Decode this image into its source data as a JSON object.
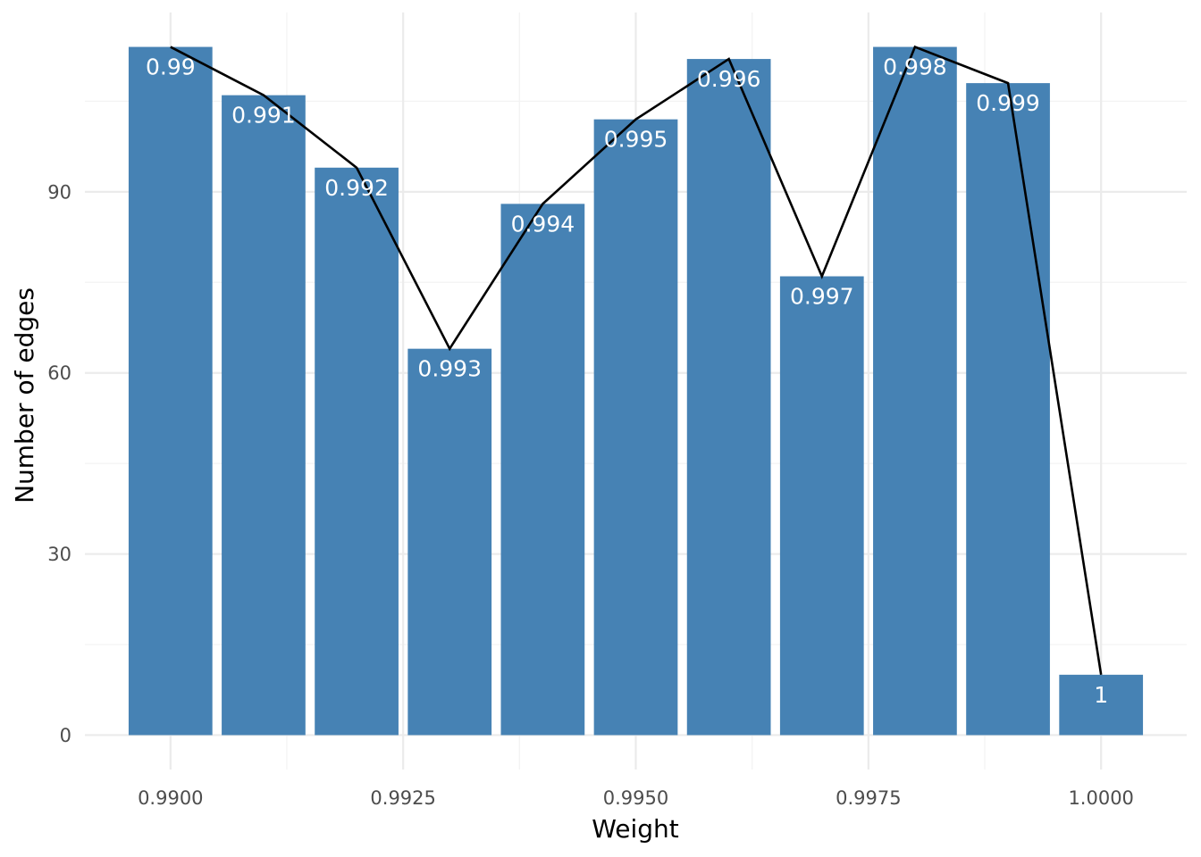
{
  "chart_data": {
    "type": "bar",
    "x": [
      0.99,
      0.991,
      0.992,
      0.993,
      0.994,
      0.995,
      0.996,
      0.997,
      0.998,
      0.999,
      1.0
    ],
    "values": [
      114,
      106,
      94,
      64,
      88,
      102,
      112,
      76,
      114,
      108,
      10
    ],
    "bar_labels": [
      "0.99",
      "0.991",
      "0.992",
      "0.993",
      "0.994",
      "0.995",
      "0.996",
      "0.997",
      "0.998",
      "0.999",
      "1"
    ],
    "line_overlay": {
      "color": "#000000",
      "connects": "bar tops"
    },
    "bar_color": "#4682b4",
    "xlabel": "Weight",
    "ylabel": "Number of edges",
    "xlim": [
      0.98908,
      1.00092
    ],
    "ylim": [
      -5.7,
      119.7
    ],
    "x_ticks": [
      0.99,
      0.9925,
      0.995,
      0.9975,
      1.0
    ],
    "x_tick_labels": [
      "0.9900",
      "0.9925",
      "0.9950",
      "0.9975",
      "1.0000"
    ],
    "y_ticks": [
      0,
      30,
      60,
      90
    ],
    "y_tick_labels": [
      "0",
      "30",
      "60",
      "90"
    ],
    "grid": true,
    "legend": "none"
  }
}
